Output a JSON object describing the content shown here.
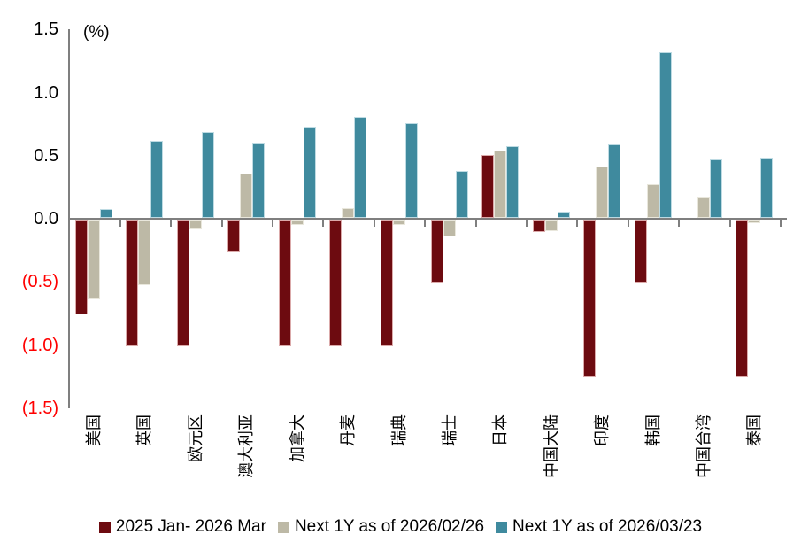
{
  "chart_data": {
    "type": "bar",
    "unit_label": "(%)",
    "categories": [
      "美国",
      "英国",
      "欧元区",
      "澳大利亚",
      "加拿大",
      "丹麦",
      "瑞典",
      "瑞士",
      "日本",
      "中国大陆",
      "印度",
      "韩国",
      "中国台湾",
      "泰国"
    ],
    "series": [
      {
        "name": "2025 Jan- 2026 Mar",
        "color": "#6d0b10",
        "stroke": "#dbaaaa",
        "values": [
          -0.75,
          -1.0,
          -1.0,
          -0.25,
          -1.0,
          -1.0,
          -1.0,
          -0.5,
          0.5,
          -0.1,
          -1.25,
          -0.5,
          0,
          -1.25
        ]
      },
      {
        "name": "Next 1Y as of 2026/02/26",
        "color": "#bdb9a6",
        "stroke": "#e9e7dc",
        "values": [
          -0.63,
          -0.52,
          -0.07,
          0.35,
          -0.04,
          0.08,
          -0.04,
          -0.13,
          0.53,
          -0.09,
          0.41,
          0.27,
          0.17,
          -0.03
        ]
      },
      {
        "name": "Next 1Y as of 2026/03/23",
        "color": "#3f8a9e",
        "stroke": "#bedbe3",
        "values": [
          0.07,
          0.61,
          0.68,
          0.59,
          0.72,
          0.8,
          0.75,
          0.37,
          0.57,
          0.05,
          0.58,
          1.31,
          0.46,
          0.48
        ]
      }
    ],
    "y_axis": {
      "range": [
        -1.5,
        1.5
      ],
      "ticks": [
        {
          "label": "1.5",
          "value": 1.5,
          "color": "#000000"
        },
        {
          "label": "1.0",
          "value": 1.0,
          "color": "#000000"
        },
        {
          "label": "0.5",
          "value": 0.5,
          "color": "#000000"
        },
        {
          "label": "0.0",
          "value": 0.0,
          "color": "#000000"
        },
        {
          "label": "(0.5)",
          "value": -0.5,
          "color": "#ff0000"
        },
        {
          "label": "(1.0)",
          "value": -1.0,
          "color": "#ff0000"
        },
        {
          "label": "(1.5)",
          "value": -1.5,
          "color": "#ff0000"
        }
      ]
    },
    "axis_color": "#7f7f7f",
    "legend_position": "bottom",
    "grid": false
  }
}
